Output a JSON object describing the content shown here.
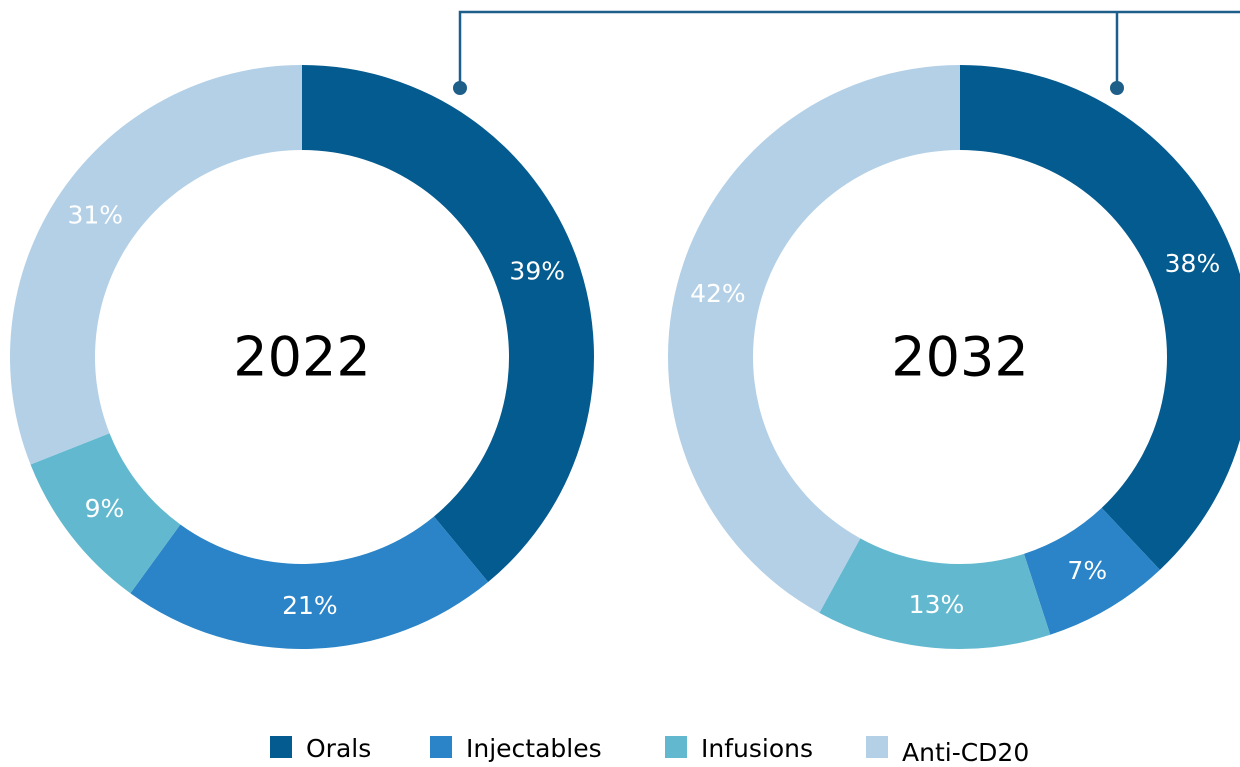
{
  "chart_data": [
    {
      "type": "pie",
      "title": "2022",
      "categories": [
        "Orals",
        "Injectables",
        "Infusions",
        "Anti-CD20"
      ],
      "colors": [
        "#045b8f",
        "#2a84c7",
        "#62b9cf",
        "#b3d0e7"
      ],
      "values": [
        39,
        21,
        9,
        31
      ],
      "value_labels": [
        "39%",
        "21%",
        "9%",
        "31%"
      ]
    },
    {
      "type": "pie",
      "title": "2032",
      "values": [
        38,
        7,
        13,
        42
      ],
      "value_labels": [
        "38%",
        "7%",
        "13%",
        "42%"
      ]
    }
  ]
}
